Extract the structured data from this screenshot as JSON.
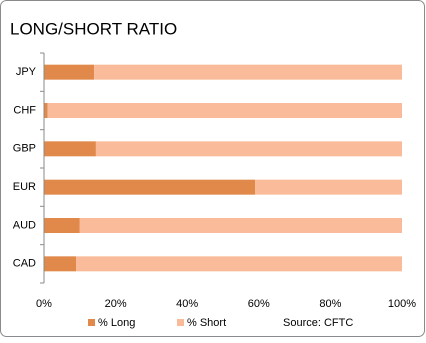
{
  "chart_data": {
    "type": "stacked-hbar",
    "title": "LONG/SHORT RATIO",
    "categories": [
      "JPY",
      "CHF",
      "GBP",
      "EUR",
      "AUD",
      "CAD"
    ],
    "series": [
      {
        "name": "% Long",
        "color": "#e0894a",
        "values": [
          14,
          1,
          14.5,
          59,
          10,
          9
        ]
      },
      {
        "name": "% Short",
        "color": "#f9bb99",
        "values": [
          86,
          99,
          85.5,
          41,
          90,
          91
        ]
      }
    ],
    "xlim": [
      0,
      100
    ],
    "xticks": [
      {
        "value": 0,
        "label": "0%"
      },
      {
        "value": 20,
        "label": "20%"
      },
      {
        "value": 40,
        "label": "40%"
      },
      {
        "value": 60,
        "label": "60%"
      },
      {
        "value": 80,
        "label": "80%"
      },
      {
        "value": 100,
        "label": "100%"
      }
    ],
    "annotation": "Source: CFTC"
  }
}
